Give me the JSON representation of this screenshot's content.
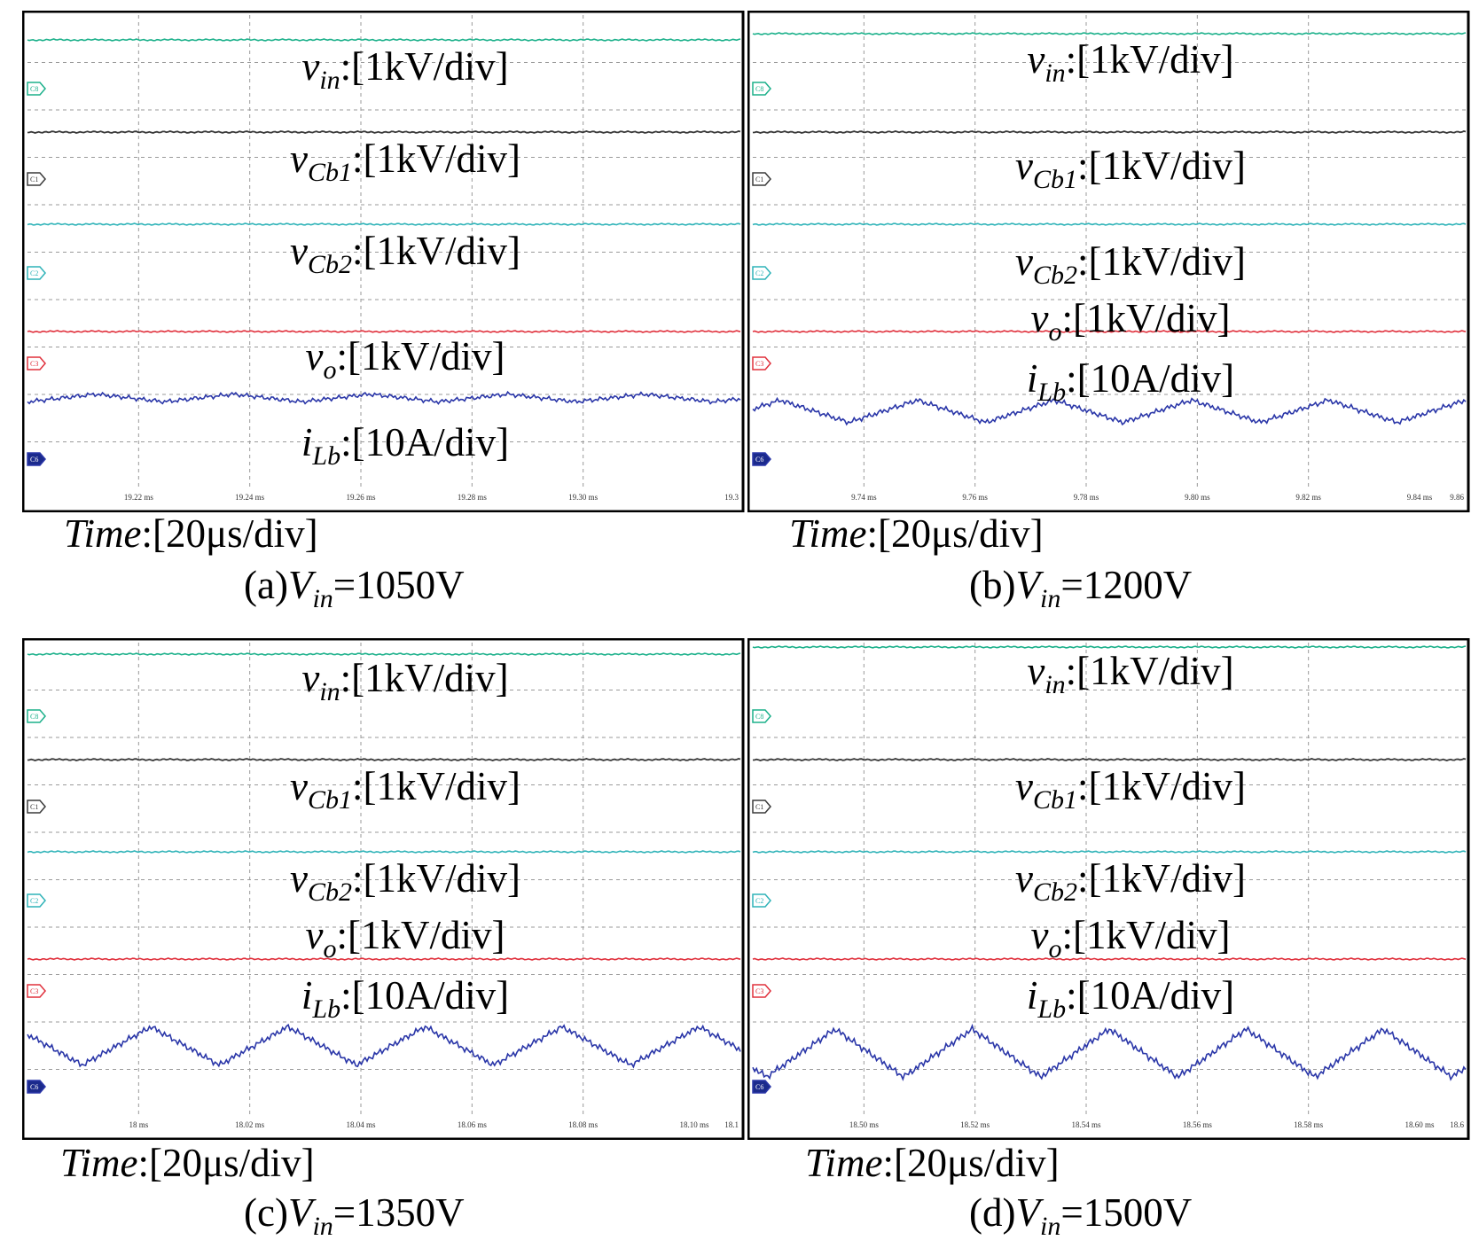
{
  "colors": {
    "vin": "#1bb08a",
    "vCb1": "#3a3a3a",
    "vCb2": "#2fb3b8",
    "vo": "#e0303c",
    "iLb": "#2a36a8",
    "grid": "#9a9a9a",
    "frame": "#000000"
  },
  "chart_data": [
    {
      "type": "line",
      "caption_prefix": "(a)",
      "caption_var": "V",
      "caption_sub": "in",
      "caption_value": "=1050V",
      "time_var": "Time",
      "time_scale": ":[20μs/div]",
      "x_ticks": [
        "19.22 ms",
        "19.24 ms",
        "19.26 ms",
        "19.28 ms",
        "19.30 ms",
        "19.3"
      ],
      "channels": [
        {
          "marker": "C8",
          "name_var": "v",
          "name_sub": "in",
          "scale": ":[1kV/div]",
          "color": "vin"
        },
        {
          "marker": "C1",
          "name_var": "v",
          "name_sub": "Cb1",
          "scale": ":[1kV/div]",
          "color": "vCb1"
        },
        {
          "marker": "C2",
          "name_var": "v",
          "name_sub": "Cb2",
          "scale": ":[1kV/div]",
          "color": "vCb2"
        },
        {
          "marker": "C3",
          "name_var": "v",
          "name_sub": "o",
          "scale": ":[1kV/div]",
          "color": "vo"
        },
        {
          "marker": "C6",
          "name_var": "i",
          "name_sub": "Lb",
          "scale": ":[10A/div]",
          "color": "iLb"
        }
      ],
      "iLb_ripple": 0.12
    },
    {
      "type": "line",
      "caption_prefix": "(b)",
      "caption_var": "V",
      "caption_sub": "in",
      "caption_value": "=1200V",
      "time_var": "Time",
      "time_scale": ":[20μs/div]",
      "x_ticks": [
        "9.74 ms",
        "9.76 ms",
        "9.78 ms",
        "9.80 ms",
        "9.82 ms",
        "9.84 ms",
        "9.86"
      ],
      "channels": [
        {
          "marker": "C8",
          "name_var": "v",
          "name_sub": "in",
          "scale": ":[1kV/div]",
          "color": "vin"
        },
        {
          "marker": "C1",
          "name_var": "v",
          "name_sub": "Cb1",
          "scale": ":[1kV/div]",
          "color": "vCb1"
        },
        {
          "marker": "C2",
          "name_var": "v",
          "name_sub": "Cb2",
          "scale": ":[1kV/div]",
          "color": "vCb2"
        },
        {
          "marker": "C3",
          "name_var": "v",
          "name_sub": "o",
          "scale": ":[1kV/div]",
          "color": "vo"
        },
        {
          "marker": "C6",
          "name_var": "i",
          "name_sub": "Lb",
          "scale": ":[10A/div]",
          "color": "iLb"
        }
      ],
      "iLb_ripple": 0.35
    },
    {
      "type": "line",
      "caption_prefix": "(c)",
      "caption_var": "V",
      "caption_sub": "in",
      "caption_value": "=1350V",
      "time_var": "Time",
      "time_scale": ":[20μs/div]",
      "x_ticks": [
        "18 ms",
        "18.02 ms",
        "18.04 ms",
        "18.06 ms",
        "18.08 ms",
        "18.10 ms",
        "18.1"
      ],
      "channels": [
        {
          "marker": "C8",
          "name_var": "v",
          "name_sub": "in",
          "scale": ":[1kV/div]",
          "color": "vin"
        },
        {
          "marker": "C1",
          "name_var": "v",
          "name_sub": "Cb1",
          "scale": ":[1kV/div]",
          "color": "vCb1"
        },
        {
          "marker": "C2",
          "name_var": "v",
          "name_sub": "Cb2",
          "scale": ":[1kV/div]",
          "color": "vCb2"
        },
        {
          "marker": "C3",
          "name_var": "v",
          "name_sub": "o",
          "scale": ":[1kV/div]",
          "color": "vo"
        },
        {
          "marker": "C6",
          "name_var": "i",
          "name_sub": "Lb",
          "scale": ":[10A/div]",
          "color": "iLb"
        }
      ],
      "iLb_ripple": 0.6
    },
    {
      "type": "line",
      "caption_prefix": "(d)",
      "caption_var": "V",
      "caption_sub": "in",
      "caption_value": "=1500V",
      "time_var": "Time",
      "time_scale": ":[20μs/div]",
      "x_ticks": [
        "18.50 ms",
        "18.52 ms",
        "18.54 ms",
        "18.56 ms",
        "18.58 ms",
        "18.60 ms",
        "18.6"
      ],
      "channels": [
        {
          "marker": "C8",
          "name_var": "v",
          "name_sub": "in",
          "scale": ":[1kV/div]",
          "color": "vin"
        },
        {
          "marker": "C1",
          "name_var": "v",
          "name_sub": "Cb1",
          "scale": ":[1kV/div]",
          "color": "vCb1"
        },
        {
          "marker": "C2",
          "name_var": "v",
          "name_sub": "Cb2",
          "scale": ":[1kV/div]",
          "color": "vCb2"
        },
        {
          "marker": "C3",
          "name_var": "v",
          "name_sub": "o",
          "scale": ":[1kV/div]",
          "color": "vo"
        },
        {
          "marker": "C6",
          "name_var": "i",
          "name_sub": "Lb",
          "scale": ":[10A/div]",
          "color": "iLb"
        }
      ],
      "iLb_ripple": 0.75
    }
  ]
}
